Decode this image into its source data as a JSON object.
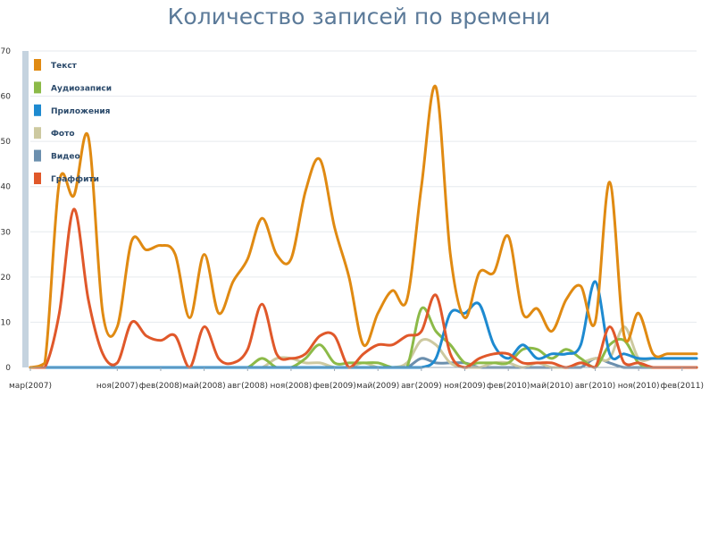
{
  "chart_data": {
    "type": "line",
    "title": "Количество записей по времени",
    "ylim": [
      0,
      70
    ],
    "yticks": [
      0,
      10,
      20,
      30,
      40,
      50,
      60,
      70
    ],
    "x_tick_labels": [
      "мар(2007)",
      "ноя(2007)",
      "фев(2008)",
      "май(2008)",
      "авг(2008)",
      "ноя(2008)",
      "фев(2009)",
      "май(2009)",
      "авг(2009)",
      "ноя(2009)",
      "фев(2010)",
      "май(2010)",
      "авг(2010)",
      "ноя(2010)",
      "фев(2011)"
    ],
    "x_tick_index": [
      0,
      6,
      9,
      12,
      15,
      18,
      21,
      24,
      27,
      30,
      33,
      36,
      39,
      42,
      45
    ],
    "x_count": 47,
    "grid": true,
    "legend_position": "top-left",
    "series": [
      {
        "name": "Текст",
        "color": "#e08a12",
        "values": [
          0,
          1,
          41,
          38,
          51,
          12,
          9,
          28,
          26,
          27,
          25,
          11,
          25,
          12,
          19,
          24,
          33,
          25,
          24,
          39,
          46,
          31,
          20,
          5,
          12,
          17,
          15,
          40,
          62,
          25,
          11,
          21,
          21,
          29,
          12,
          13,
          8,
          15,
          18,
          10,
          41,
          7,
          12,
          3,
          3,
          3,
          3
        ]
      },
      {
        "name": "Аудиозаписи",
        "color": "#8cba48",
        "values": [
          0,
          0,
          0,
          0,
          0,
          0,
          0,
          0,
          0,
          0,
          0,
          0,
          0,
          0,
          0,
          0,
          2,
          0,
          0,
          2,
          5,
          1,
          1,
          1,
          1,
          0,
          0,
          13,
          8,
          5,
          1,
          1,
          1,
          1,
          4,
          4,
          2,
          4,
          2,
          0,
          5,
          6,
          1,
          0,
          0,
          0,
          0
        ]
      },
      {
        "name": "Приложения",
        "color": "#1e8ad0",
        "values": [
          0,
          0,
          0,
          0,
          0,
          0,
          0,
          0,
          0,
          0,
          0,
          0,
          0,
          0,
          0,
          0,
          0,
          0,
          0,
          0,
          0,
          0,
          0,
          0,
          0,
          0,
          0,
          0,
          2,
          12,
          12,
          14,
          5,
          2,
          5,
          2,
          3,
          3,
          5,
          19,
          3,
          3,
          2,
          2,
          2,
          2,
          2
        ]
      },
      {
        "name": "Фото",
        "color": "#cdc9a0",
        "values": [
          0,
          0,
          0,
          0,
          0,
          0,
          0,
          0,
          0,
          0,
          0,
          0,
          0,
          0,
          0,
          0,
          0,
          2,
          2,
          1,
          1,
          0,
          0,
          1,
          0,
          0,
          1,
          6,
          5,
          1,
          0,
          0,
          1,
          1,
          0,
          1,
          0,
          0,
          1,
          2,
          2,
          9,
          2,
          2,
          2,
          2,
          2
        ]
      },
      {
        "name": "Видео",
        "color": "#6b8fae",
        "values": [
          0,
          0,
          0,
          0,
          0,
          0,
          0,
          0,
          0,
          0,
          0,
          0,
          0,
          0,
          0,
          0,
          0,
          0,
          0,
          0,
          0,
          0,
          0,
          0,
          0,
          0,
          0,
          2,
          1,
          1,
          1,
          0,
          0,
          0,
          0,
          0,
          0,
          0,
          0,
          2,
          1,
          0,
          0,
          0,
          0,
          0,
          0
        ]
      },
      {
        "name": "Граффити",
        "color": "#e0582a",
        "values": [
          0,
          0,
          12,
          35,
          15,
          3,
          1,
          10,
          7,
          6,
          7,
          0,
          9,
          2,
          1,
          4,
          14,
          3,
          2,
          3,
          7,
          7,
          0,
          3,
          5,
          5,
          7,
          8,
          16,
          3,
          0,
          2,
          3,
          3,
          1,
          1,
          1,
          0,
          1,
          0,
          9,
          1,
          1,
          0,
          0,
          0,
          0
        ]
      }
    ]
  }
}
